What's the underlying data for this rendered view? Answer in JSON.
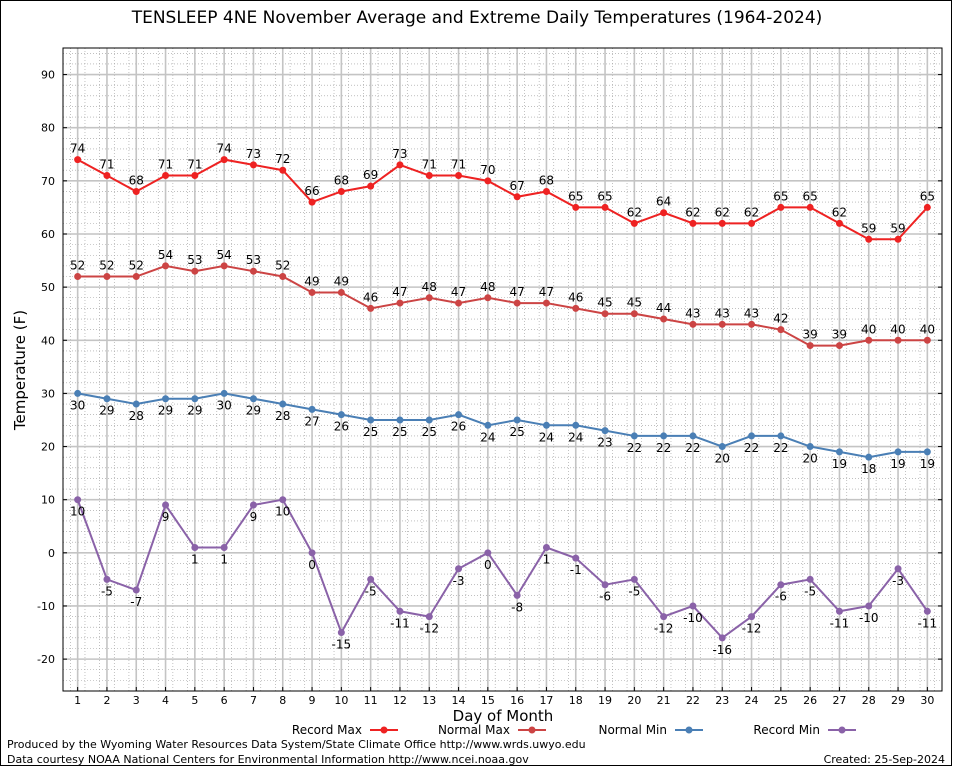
{
  "chart_data": {
    "type": "line",
    "title": "TENSLEEP 4NE November Average and Extreme Daily Temperatures (1964-2024)",
    "xlabel": "Day of Month",
    "ylabel": "Temperature (F)",
    "x": [
      1,
      2,
      3,
      4,
      5,
      6,
      7,
      8,
      9,
      10,
      11,
      12,
      13,
      14,
      15,
      16,
      17,
      18,
      19,
      20,
      21,
      22,
      23,
      24,
      25,
      26,
      27,
      28,
      29,
      30
    ],
    "xlim": [
      0.5,
      30.5
    ],
    "ylim": [
      -26,
      95
    ],
    "yticks": [
      -20,
      -10,
      0,
      10,
      20,
      30,
      40,
      50,
      60,
      70,
      80,
      90
    ],
    "grid": true,
    "legend_position": "bottom",
    "series": [
      {
        "name": "Record Max",
        "color": "#ee2222",
        "label_pos": "above",
        "values": [
          74,
          71,
          68,
          71,
          71,
          74,
          73,
          72,
          66,
          68,
          69,
          73,
          71,
          71,
          70,
          67,
          68,
          65,
          65,
          62,
          64,
          62,
          62,
          62,
          65,
          65,
          62,
          59,
          59,
          65
        ]
      },
      {
        "name": "Normal Max",
        "color": "#cc4444",
        "label_pos": "above",
        "values": [
          52,
          52,
          52,
          54,
          53,
          54,
          53,
          52,
          49,
          49,
          46,
          47,
          48,
          47,
          48,
          47,
          47,
          46,
          45,
          45,
          44,
          43,
          43,
          43,
          42,
          39,
          39,
          40,
          40,
          40
        ]
      },
      {
        "name": "Normal Min",
        "color": "#4a7fb5",
        "label_pos": "below",
        "values": [
          30,
          29,
          28,
          29,
          29,
          30,
          29,
          28,
          27,
          26,
          25,
          25,
          25,
          26,
          24,
          25,
          24,
          24,
          23,
          22,
          22,
          22,
          20,
          22,
          22,
          20,
          19,
          18,
          19,
          19
        ]
      },
      {
        "name": "Record Min",
        "color": "#8a62a8",
        "label_pos": "below",
        "values": [
          10,
          -5,
          -7,
          9,
          1,
          1,
          9,
          10,
          0,
          -15,
          -5,
          -11,
          -12,
          -3,
          0,
          -8,
          1,
          -1,
          -6,
          -5,
          -12,
          -10,
          -16,
          -12,
          -6,
          -5,
          -11,
          -10,
          -3,
          -11
        ]
      }
    ]
  },
  "footer": {
    "produced": "Produced by the Wyoming Water Resources Data System/State Climate Office http://www.wrds.uwyo.edu",
    "courtesy": "Data courtesy NOAA National Centers for Environmental Information http://www.ncei.noaa.gov",
    "created": "Created:  25-Sep-2024"
  }
}
